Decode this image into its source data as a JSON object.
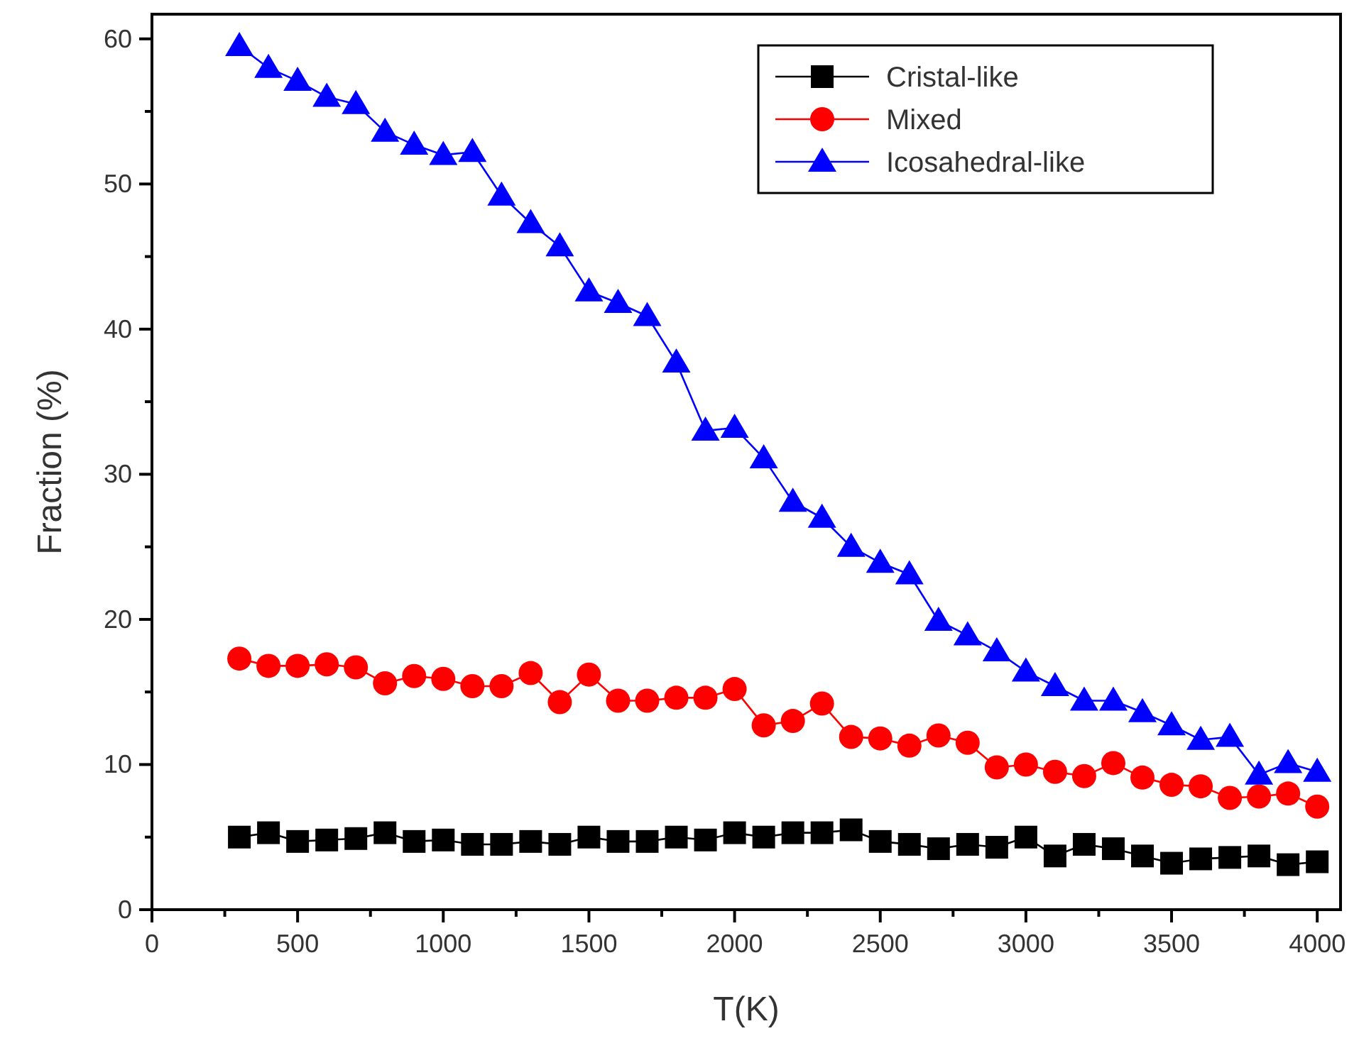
{
  "chart_data": {
    "type": "line",
    "xlabel": "T(K)",
    "ylabel": "Fraction (%)",
    "x": [
      300,
      400,
      500,
      600,
      700,
      800,
      900,
      1000,
      1100,
      1200,
      1300,
      1400,
      1500,
      1600,
      1700,
      1800,
      1900,
      2000,
      2100,
      2200,
      2300,
      2400,
      2500,
      2600,
      2700,
      2800,
      2900,
      3000,
      3100,
      3200,
      3300,
      3400,
      3500,
      3600,
      3700,
      3800,
      3900,
      4000
    ],
    "xlim": [
      0,
      4080
    ],
    "ylim": [
      0,
      61.7
    ],
    "xticks": [
      0,
      {
        "value": 250,
        "label": null
      },
      500,
      {
        "value": 750,
        "label": null
      },
      1000,
      {
        "value": 1250,
        "label": null
      },
      1500,
      {
        "value": 1750,
        "label": null
      },
      2000,
      {
        "value": 2250,
        "label": null
      },
      2500,
      {
        "value": 2750,
        "label": null
      },
      3000,
      {
        "value": 3250,
        "label": null
      },
      3500,
      {
        "value": 3750,
        "label": null
      },
      4000
    ],
    "yticks": [
      0,
      {
        "value": 5,
        "label": null
      },
      10,
      {
        "value": 15,
        "label": null
      },
      20,
      {
        "value": 25,
        "label": null
      },
      30,
      {
        "value": 35,
        "label": null
      },
      40,
      {
        "value": 45,
        "label": null
      },
      50,
      {
        "value": 55,
        "label": null
      },
      60
    ],
    "grid": false,
    "legend": "top right",
    "line_style": "solid",
    "series": [
      {
        "name": "Cristal-like",
        "color": "#000000",
        "marker": "square",
        "values": [
          5.0,
          5.3,
          4.7,
          4.8,
          4.9,
          5.3,
          4.7,
          4.8,
          4.5,
          4.5,
          4.7,
          4.5,
          5.0,
          4.7,
          4.7,
          5.0,
          4.8,
          5.3,
          5.0,
          5.3,
          5.3,
          5.5,
          4.7,
          4.5,
          4.2,
          4.5,
          4.3,
          5.0,
          3.7,
          4.5,
          4.2,
          3.7,
          3.2,
          3.5,
          3.6,
          3.7,
          3.1,
          3.3
        ]
      },
      {
        "name": "Mixed",
        "color": "#ff0000",
        "marker": "circle",
        "values": [
          17.3,
          16.8,
          16.8,
          16.9,
          16.7,
          15.6,
          16.1,
          15.9,
          15.4,
          15.4,
          16.3,
          14.3,
          16.2,
          14.4,
          14.4,
          14.6,
          14.6,
          15.2,
          12.7,
          13.0,
          14.2,
          11.9,
          11.8,
          11.3,
          12.0,
          11.5,
          9.8,
          10.0,
          9.5,
          9.2,
          10.1,
          9.1,
          8.6,
          8.5,
          7.7,
          7.8,
          8.0,
          7.1
        ]
      },
      {
        "name": "Icosahedral-like",
        "color": "#0000ff",
        "marker": "triangle",
        "values": [
          59.5,
          58.0,
          57.1,
          56.0,
          55.5,
          53.6,
          52.7,
          52.0,
          52.2,
          49.2,
          47.3,
          45.7,
          42.6,
          41.8,
          40.9,
          37.7,
          33.0,
          33.2,
          31.1,
          28.1,
          27.0,
          25.0,
          23.9,
          23.1,
          19.9,
          18.9,
          17.8,
          16.4,
          15.4,
          14.4,
          14.4,
          13.6,
          12.7,
          11.7,
          11.9,
          9.3,
          10.1,
          9.5
        ]
      }
    ]
  }
}
